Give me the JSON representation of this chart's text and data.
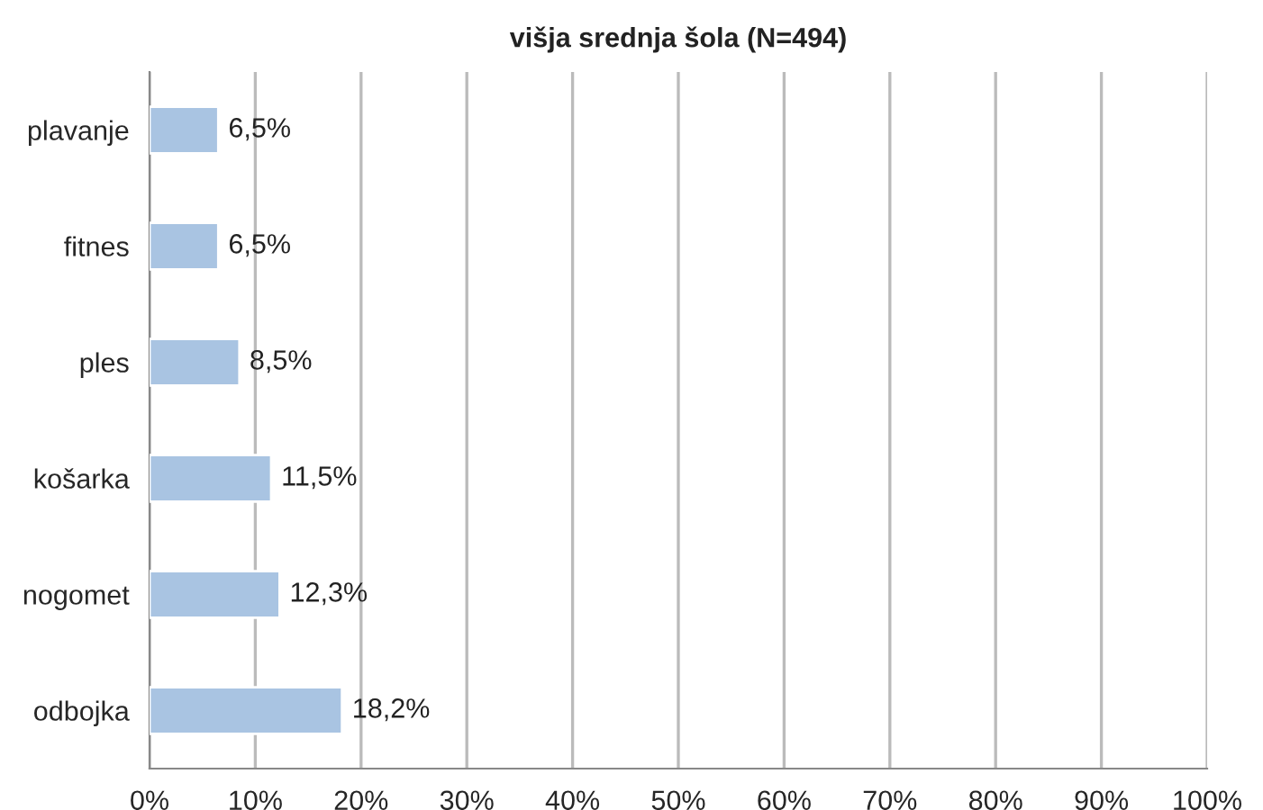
{
  "chart_data": {
    "type": "bar",
    "orientation": "horizontal",
    "title": "višja srednja šola (N=494)",
    "categories": [
      "plavanje",
      "fitnes",
      "ples",
      "košarka",
      "nogomet",
      "odbojka"
    ],
    "values": [
      6.5,
      6.5,
      8.5,
      11.5,
      12.3,
      18.2
    ],
    "value_labels": [
      "6,5%",
      "6,5%",
      "8,5%",
      "11,5%",
      "12,3%",
      "18,2%"
    ],
    "color": "#a9c4e2",
    "xlim": [
      0,
      100
    ],
    "xticks": [
      {
        "value": 0,
        "label": "0%"
      },
      {
        "value": 10,
        "label": "10%"
      },
      {
        "value": 20,
        "label": "20%"
      },
      {
        "value": 30,
        "label": "30%"
      },
      {
        "value": 40,
        "label": "40%"
      },
      {
        "value": 50,
        "label": "50%"
      },
      {
        "value": 60,
        "label": "60%"
      },
      {
        "value": 70,
        "label": "70%"
      },
      {
        "value": 80,
        "label": "80%"
      },
      {
        "value": 90,
        "label": "90%"
      },
      {
        "value": 100,
        "label": "100%"
      }
    ],
    "grid": "x",
    "legend": false
  }
}
